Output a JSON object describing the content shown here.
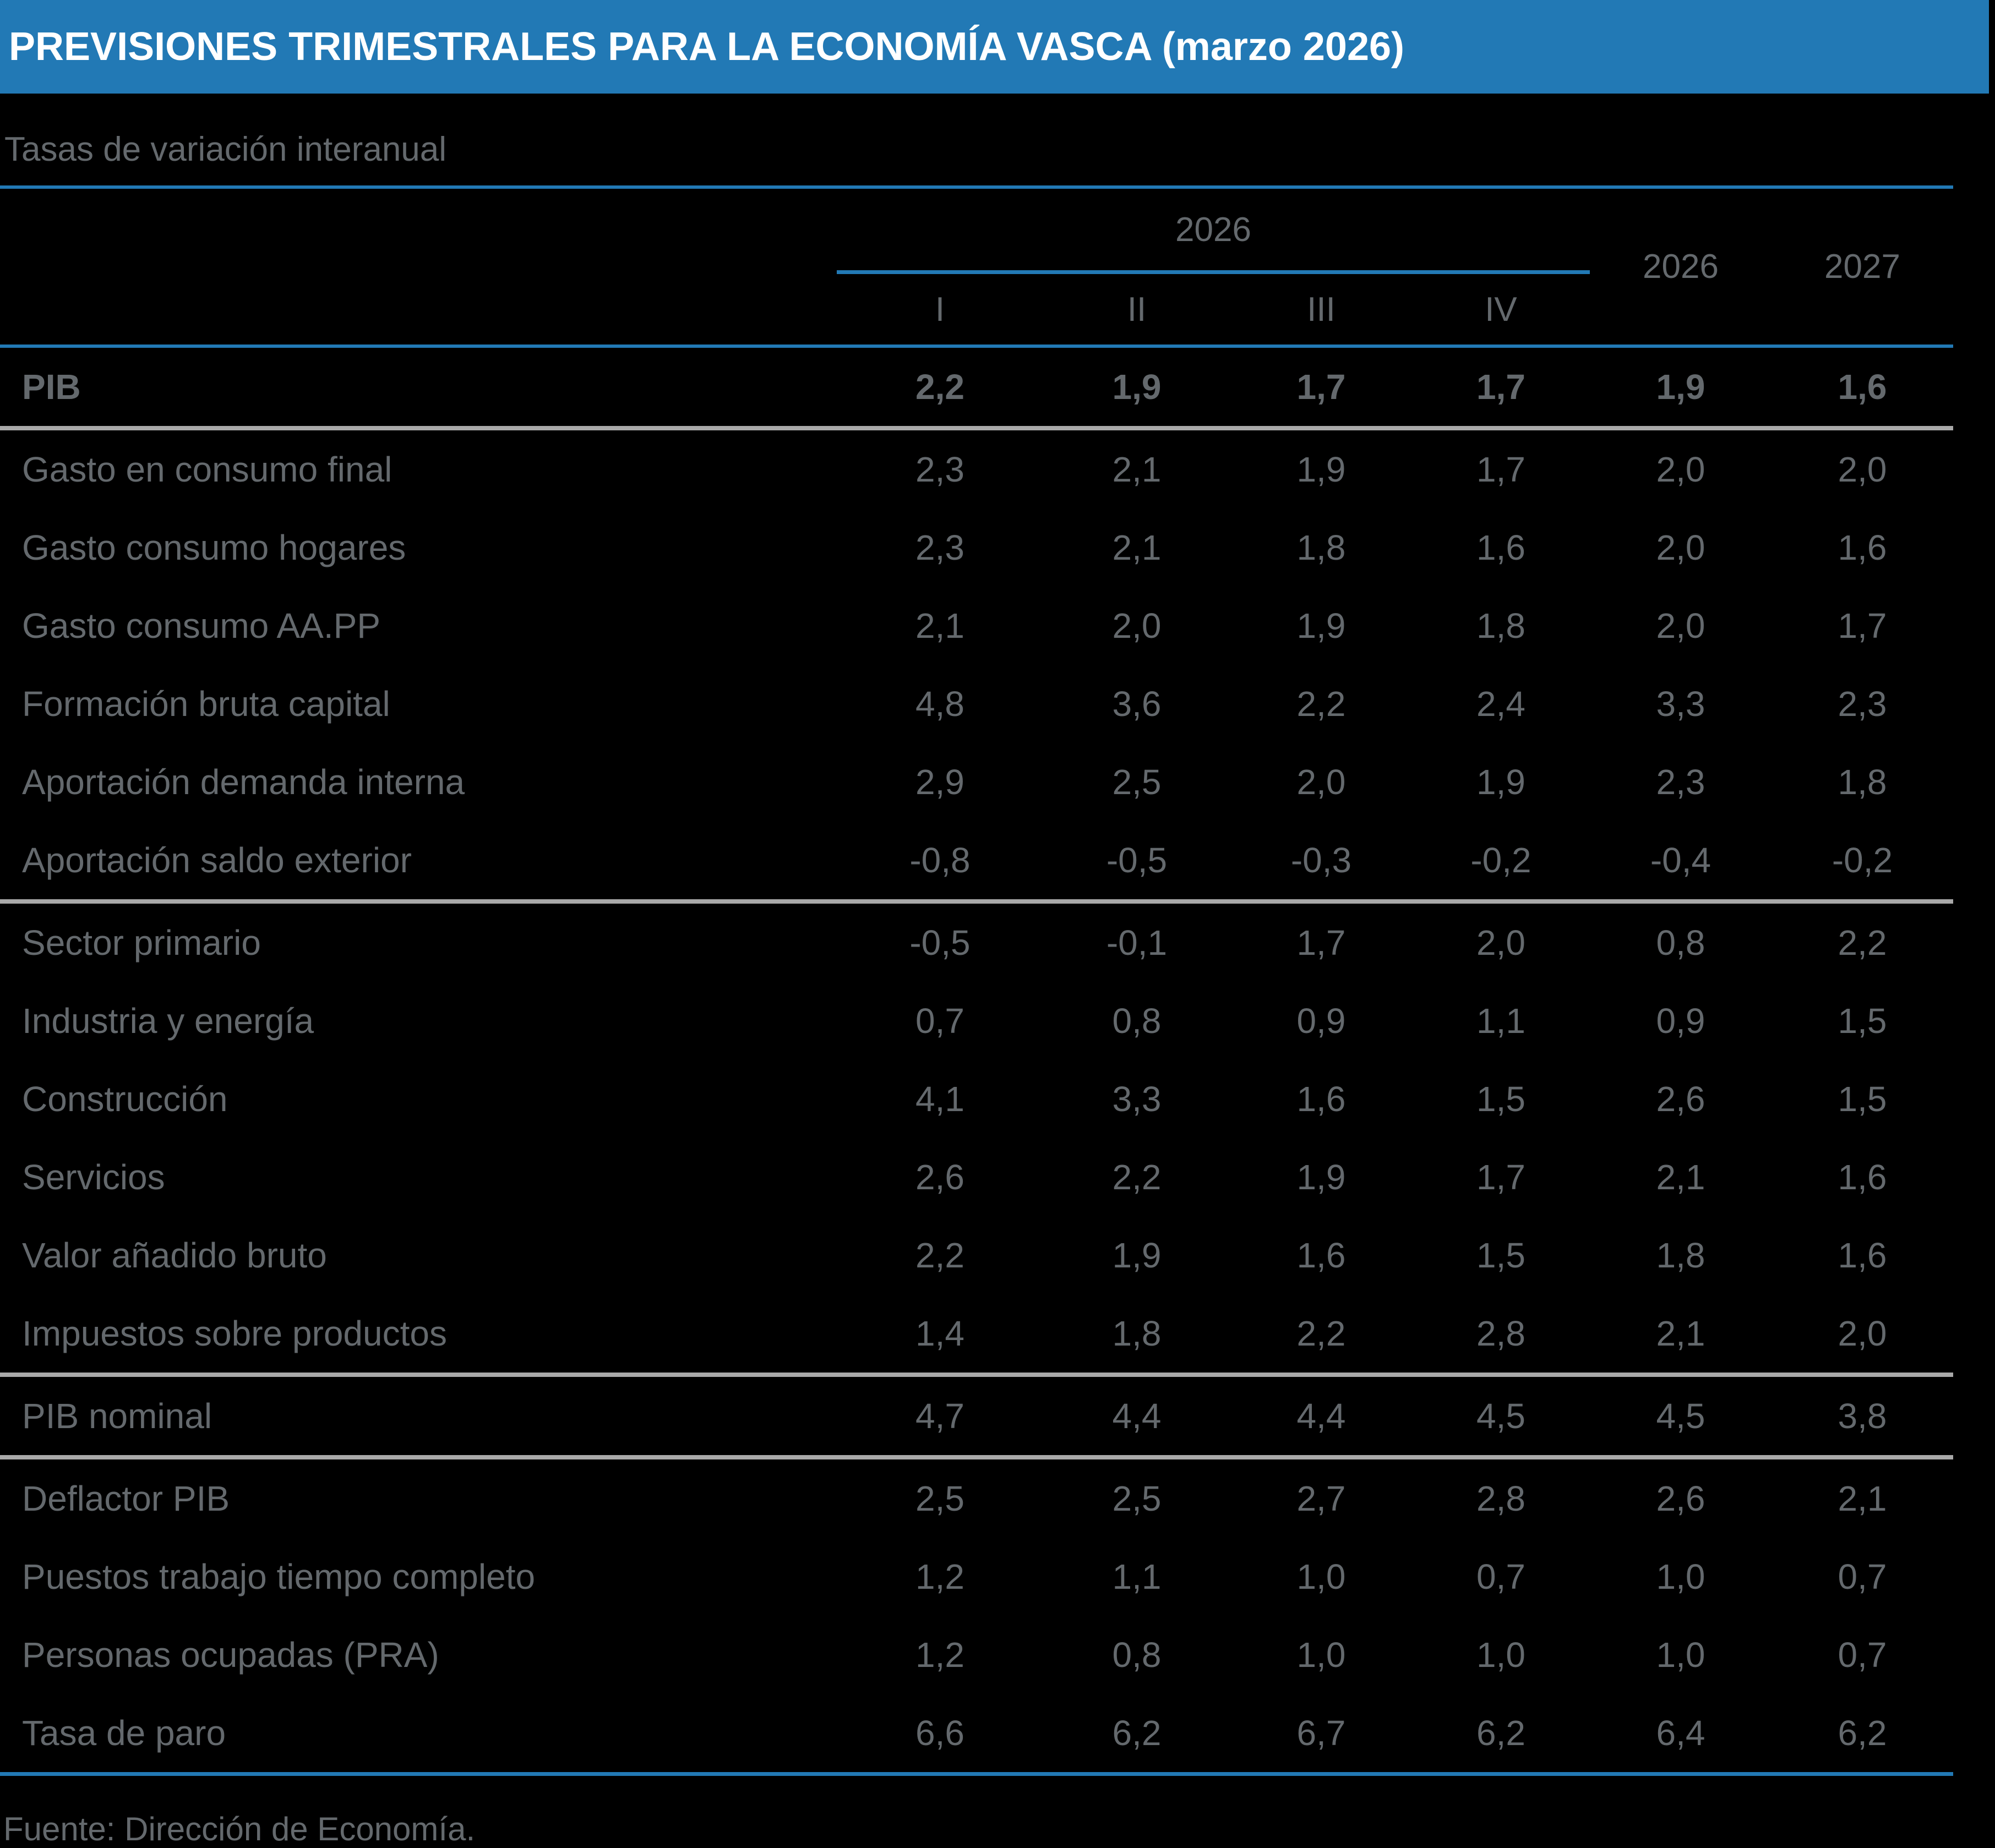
{
  "title": "PREVISIONES TRIMESTRALES PARA LA ECONOMÍA VASCA (marzo 2026)",
  "subtitle": "Tasas de variación interanual",
  "header": {
    "quarter_group_year": "2026",
    "quarters": [
      "I",
      "II",
      "III",
      "IV"
    ],
    "annual_years": [
      "2026",
      "2027"
    ]
  },
  "footer": {
    "source": "Fuente: Dirección de Economía."
  },
  "colors": {
    "accent_blue": "#2279b5",
    "text_gray": "#64696d",
    "separator_gray": "#a9a9a9",
    "background": "#000000",
    "title_text": "#ffffff"
  },
  "chart_data": {
    "type": "table",
    "title": "PREVISIONES TRIMESTRALES PARA LA ECONOMÍA VASCA (marzo 2026)",
    "subtitle": "Tasas de variación interanual",
    "source": "Fuente: Dirección de Economía.",
    "column_group": {
      "label": "2026",
      "spans_columns": [
        "I",
        "II",
        "III",
        "IV"
      ]
    },
    "columns": [
      "I",
      "II",
      "III",
      "IV",
      "2026",
      "2027"
    ],
    "rows": [
      {
        "label": "PIB",
        "bold": true,
        "separator_after": true,
        "values": [
          "2,2",
          "1,9",
          "1,7",
          "1,7",
          "1,9",
          "1,6"
        ]
      },
      {
        "label": "Gasto en consumo final",
        "bold": false,
        "separator_after": false,
        "values": [
          "2,3",
          "2,1",
          "1,9",
          "1,7",
          "2,0",
          "2,0"
        ]
      },
      {
        "label": "Gasto consumo hogares",
        "bold": false,
        "separator_after": false,
        "values": [
          "2,3",
          "2,1",
          "1,8",
          "1,6",
          "2,0",
          "1,6"
        ]
      },
      {
        "label": "Gasto consumo AA.PP",
        "bold": false,
        "separator_after": false,
        "values": [
          "2,1",
          "2,0",
          "1,9",
          "1,8",
          "2,0",
          "1,7"
        ]
      },
      {
        "label": "Formación bruta capital",
        "bold": false,
        "separator_after": false,
        "values": [
          "4,8",
          "3,6",
          "2,2",
          "2,4",
          "3,3",
          "2,3"
        ]
      },
      {
        "label": "Aportación demanda interna",
        "bold": false,
        "separator_after": false,
        "values": [
          "2,9",
          "2,5",
          "2,0",
          "1,9",
          "2,3",
          "1,8"
        ]
      },
      {
        "label": "Aportación saldo exterior",
        "bold": false,
        "separator_after": true,
        "values": [
          "-0,8",
          "-0,5",
          "-0,3",
          "-0,2",
          "-0,4",
          "-0,2"
        ]
      },
      {
        "label": "Sector primario",
        "bold": false,
        "separator_after": false,
        "values": [
          "-0,5",
          "-0,1",
          "1,7",
          "2,0",
          "0,8",
          "2,2"
        ]
      },
      {
        "label": "Industria y energía",
        "bold": false,
        "separator_after": false,
        "values": [
          "0,7",
          "0,8",
          "0,9",
          "1,1",
          "0,9",
          "1,5"
        ]
      },
      {
        "label": "Construcción",
        "bold": false,
        "separator_after": false,
        "values": [
          "4,1",
          "3,3",
          "1,6",
          "1,5",
          "2,6",
          "1,5"
        ]
      },
      {
        "label": "Servicios",
        "bold": false,
        "separator_after": false,
        "values": [
          "2,6",
          "2,2",
          "1,9",
          "1,7",
          "2,1",
          "1,6"
        ]
      },
      {
        "label": "Valor añadido bruto",
        "bold": false,
        "separator_after": false,
        "values": [
          "2,2",
          "1,9",
          "1,6",
          "1,5",
          "1,8",
          "1,6"
        ]
      },
      {
        "label": "Impuestos sobre productos",
        "bold": false,
        "separator_after": true,
        "values": [
          "1,4",
          "1,8",
          "2,2",
          "2,8",
          "2,1",
          "2,0"
        ]
      },
      {
        "label": "PIB nominal",
        "bold": false,
        "separator_after": true,
        "values": [
          "4,7",
          "4,4",
          "4,4",
          "4,5",
          "4,5",
          "3,8"
        ]
      },
      {
        "label": "Deflactor PIB",
        "bold": false,
        "separator_after": false,
        "values": [
          "2,5",
          "2,5",
          "2,7",
          "2,8",
          "2,6",
          "2,1"
        ]
      },
      {
        "label": "Puestos trabajo tiempo completo",
        "bold": false,
        "separator_after": false,
        "values": [
          "1,2",
          "1,1",
          "1,0",
          "0,7",
          "1,0",
          "0,7"
        ]
      },
      {
        "label": "Personas ocupadas (PRA)",
        "bold": false,
        "separator_after": false,
        "values": [
          "1,2",
          "0,8",
          "1,0",
          "1,0",
          "1,0",
          "0,7"
        ]
      },
      {
        "label": "Tasa de paro",
        "bold": false,
        "separator_after": false,
        "values": [
          "6,6",
          "6,2",
          "6,7",
          "6,2",
          "6,4",
          "6,2"
        ]
      }
    ]
  }
}
